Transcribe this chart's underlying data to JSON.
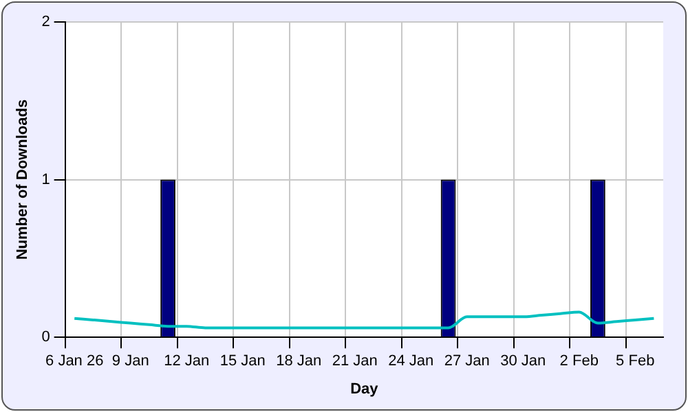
{
  "chart_data": {
    "type": "bar",
    "xlabel": "Day",
    "ylabel": "Number of Downloads",
    "categories": [
      "6 Jan 26",
      null,
      null,
      "9 Jan",
      null,
      null,
      "12 Jan",
      null,
      null,
      "15 Jan",
      null,
      null,
      "18 Jan",
      null,
      null,
      "21 Jan",
      null,
      null,
      "24 Jan",
      null,
      null,
      "27 Jan",
      null,
      null,
      "30 Jan",
      null,
      null,
      "2 Feb",
      null,
      null,
      "5 Feb",
      null
    ],
    "series": [
      {
        "color": "#000080",
        "values": [
          0,
          0,
          0,
          0,
          0,
          1,
          0,
          0,
          0,
          0,
          0,
          0,
          0,
          0,
          0,
          0,
          0,
          0,
          0,
          0,
          1,
          0,
          0,
          0,
          0,
          0,
          0,
          0,
          1,
          0,
          0,
          0
        ]
      },
      {
        "type": "line",
        "color": "#00c0c0",
        "values": [
          0.12,
          0.11,
          0.1,
          0.09,
          0.08,
          0.07,
          0.07,
          0.06,
          0.06,
          0.06,
          0.06,
          0.06,
          0.06,
          0.06,
          0.06,
          0.06,
          0.06,
          0.06,
          0.06,
          0.06,
          0.06,
          0.13,
          0.13,
          0.13,
          0.13,
          0.14,
          0.15,
          0.16,
          0.09,
          0.1,
          0.11,
          0.12
        ]
      }
    ],
    "ylim": [
      0,
      2
    ],
    "yticks": [
      0,
      1,
      2
    ],
    "grid": true,
    "legend": false,
    "marker": "none"
  }
}
